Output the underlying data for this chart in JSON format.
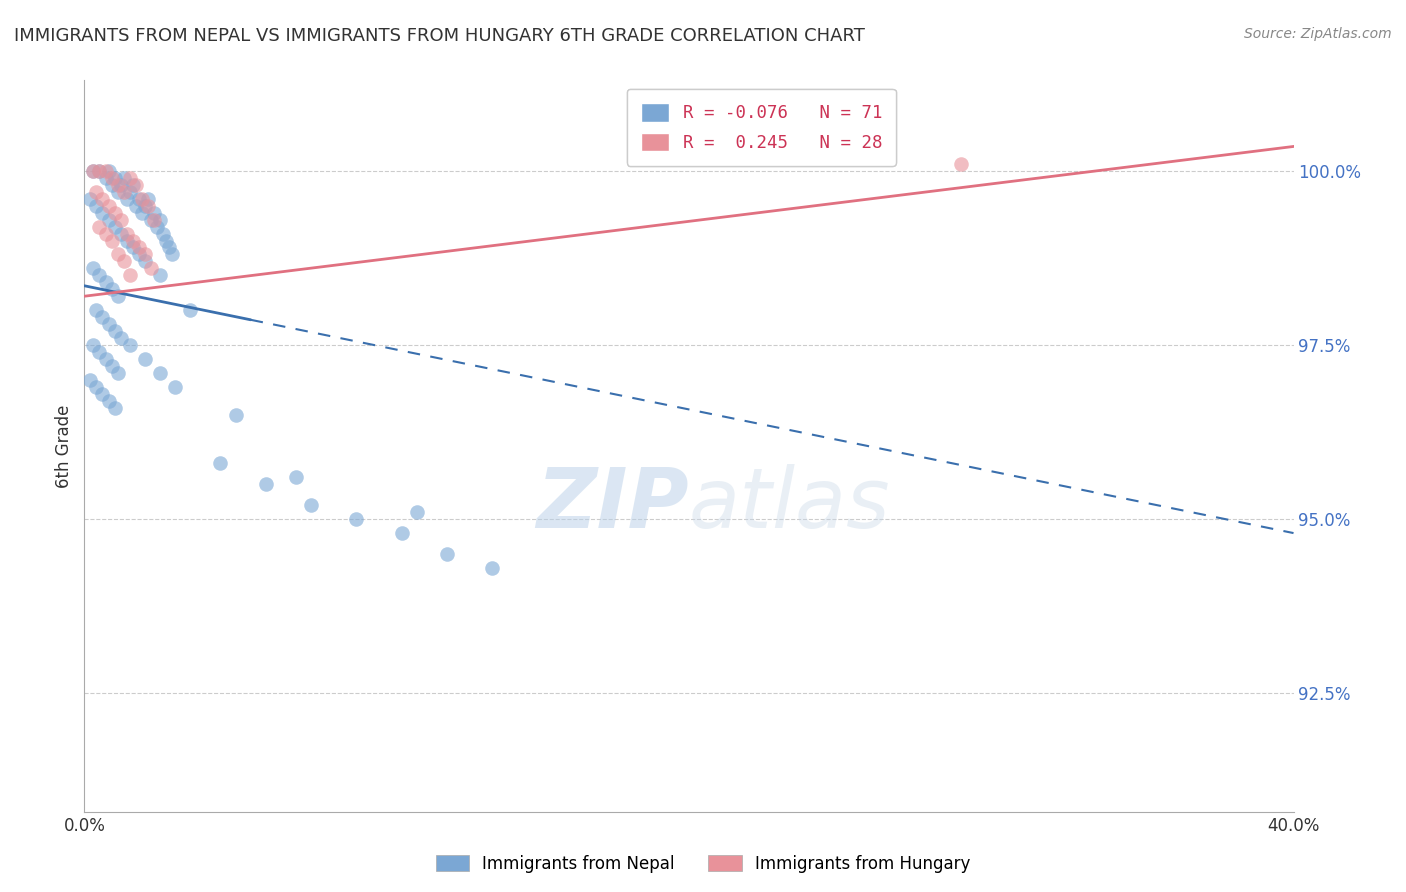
{
  "title": "IMMIGRANTS FROM NEPAL VS IMMIGRANTS FROM HUNGARY 6TH GRADE CORRELATION CHART",
  "source": "Source: ZipAtlas.com",
  "ylabel": "6th Grade",
  "nepal_R": -0.076,
  "nepal_N": 71,
  "hungary_R": 0.245,
  "hungary_N": 28,
  "nepal_color": "#7ba7d4",
  "hungary_color": "#e8929a",
  "nepal_line_color": "#3a6fad",
  "hungary_line_color": "#e07080",
  "watermark_zip": "ZIP",
  "watermark_atlas": "atlas",
  "legend_label_nepal": "Immigrants from Nepal",
  "legend_label_hungary": "Immigrants from Hungary",
  "xlim": [
    0.0,
    40.0
  ],
  "ylim": [
    90.8,
    101.3
  ],
  "yticks": [
    92.5,
    95.0,
    97.5,
    100.0
  ],
  "ytick_labels": [
    "92.5%",
    "95.0%",
    "97.5%",
    "100.0%"
  ],
  "nepal_scatter_x": [
    0.3,
    0.5,
    0.7,
    0.8,
    0.9,
    1.0,
    1.1,
    1.2,
    1.3,
    1.4,
    1.5,
    1.6,
    1.7,
    1.8,
    1.9,
    2.0,
    2.1,
    2.2,
    2.3,
    2.4,
    2.5,
    2.6,
    2.7,
    2.8,
    2.9,
    0.2,
    0.4,
    0.6,
    0.8,
    1.0,
    1.2,
    1.4,
    1.6,
    1.8,
    2.0,
    0.3,
    0.5,
    0.7,
    0.9,
    1.1,
    0.4,
    0.6,
    0.8,
    1.0,
    1.2,
    0.3,
    0.5,
    0.7,
    0.9,
    1.1,
    0.2,
    0.4,
    0.6,
    0.8,
    1.0,
    1.5,
    2.0,
    2.5,
    3.0,
    4.5,
    6.0,
    7.5,
    9.0,
    10.5,
    12.0,
    13.5,
    2.5,
    3.5,
    5.0,
    7.0,
    11.0
  ],
  "nepal_scatter_y": [
    100.0,
    100.0,
    99.9,
    100.0,
    99.8,
    99.9,
    99.7,
    99.8,
    99.9,
    99.6,
    99.7,
    99.8,
    99.5,
    99.6,
    99.4,
    99.5,
    99.6,
    99.3,
    99.4,
    99.2,
    99.3,
    99.1,
    99.0,
    98.9,
    98.8,
    99.6,
    99.5,
    99.4,
    99.3,
    99.2,
    99.1,
    99.0,
    98.9,
    98.8,
    98.7,
    98.6,
    98.5,
    98.4,
    98.3,
    98.2,
    98.0,
    97.9,
    97.8,
    97.7,
    97.6,
    97.5,
    97.4,
    97.3,
    97.2,
    97.1,
    97.0,
    96.9,
    96.8,
    96.7,
    96.6,
    97.5,
    97.3,
    97.1,
    96.9,
    95.8,
    95.5,
    95.2,
    95.0,
    94.8,
    94.5,
    94.3,
    98.5,
    98.0,
    96.5,
    95.6,
    95.1
  ],
  "hungary_scatter_x": [
    0.3,
    0.5,
    0.7,
    0.9,
    1.1,
    1.3,
    1.5,
    1.7,
    1.9,
    2.1,
    2.3,
    0.4,
    0.6,
    0.8,
    1.0,
    1.2,
    1.4,
    1.6,
    1.8,
    2.0,
    2.2,
    0.5,
    0.7,
    0.9,
    1.1,
    1.3,
    1.5,
    29.0
  ],
  "hungary_scatter_y": [
    100.0,
    100.0,
    100.0,
    99.9,
    99.8,
    99.7,
    99.9,
    99.8,
    99.6,
    99.5,
    99.3,
    99.7,
    99.6,
    99.5,
    99.4,
    99.3,
    99.1,
    99.0,
    98.9,
    98.8,
    98.6,
    99.2,
    99.1,
    99.0,
    98.8,
    98.7,
    98.5,
    100.1
  ],
  "nepal_line_x0": 0.0,
  "nepal_line_x1": 40.0,
  "nepal_line_y0": 98.35,
  "nepal_line_y1": 94.8,
  "nepal_solid_end": 5.5,
  "hungary_line_x0": 0.0,
  "hungary_line_x1": 40.0,
  "hungary_line_y0": 98.2,
  "hungary_line_y1": 100.35
}
